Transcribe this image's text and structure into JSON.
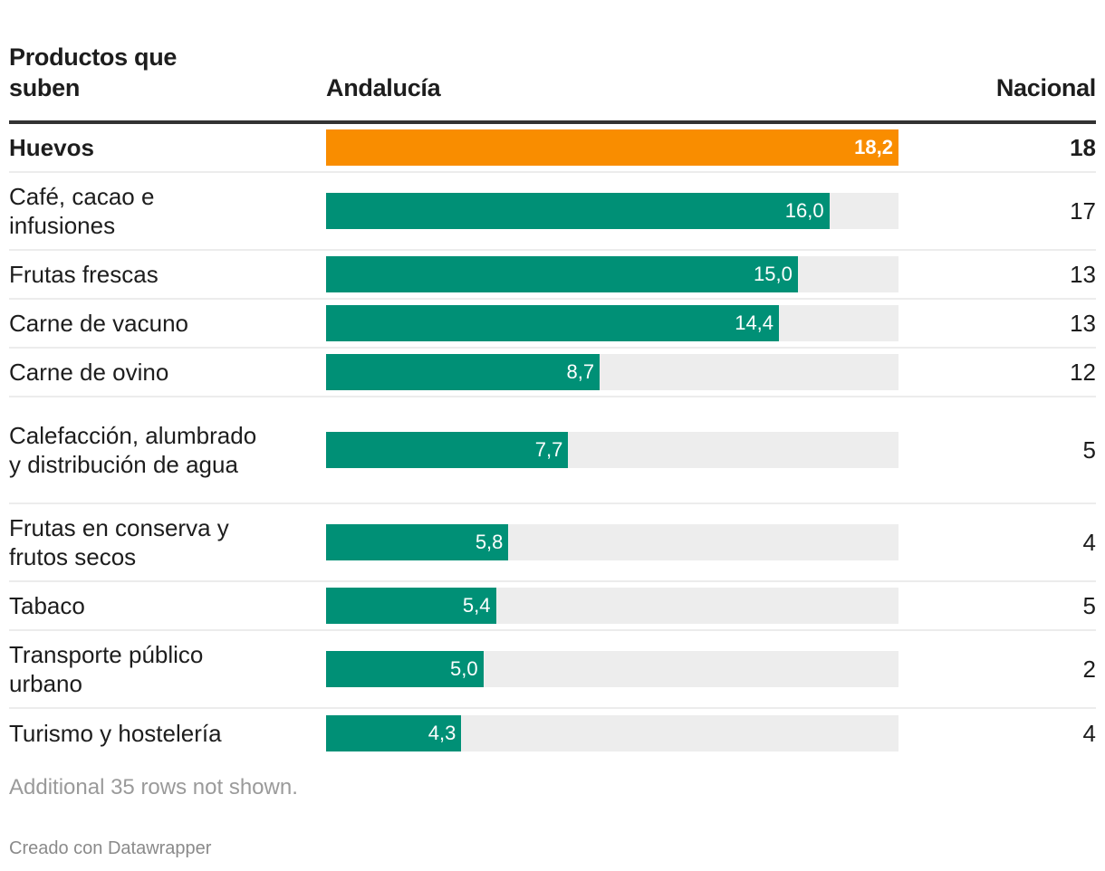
{
  "chart_data": {
    "type": "table",
    "columns": [
      "Productos que suben",
      "Andalucía",
      "Nacional"
    ],
    "bar_column": "Andalucía",
    "bar_max": 18.2,
    "colors": {
      "highlight": "#f98d00",
      "bar": "#009076",
      "track": "#ededed"
    },
    "rows": [
      {
        "product": "Huevos",
        "andalucia": 18.2,
        "andalucia_label": "18,2",
        "nacional": "18",
        "highlight": true
      },
      {
        "product": "Café, cacao e infusiones",
        "andalucia": 16.0,
        "andalucia_label": "16,0",
        "nacional": "17",
        "highlight": false
      },
      {
        "product": "Frutas frescas",
        "andalucia": 15.0,
        "andalucia_label": "15,0",
        "nacional": "13",
        "highlight": false
      },
      {
        "product": "Carne de vacuno",
        "andalucia": 14.4,
        "andalucia_label": "14,4",
        "nacional": "13",
        "highlight": false
      },
      {
        "product": "Carne de ovino",
        "andalucia": 8.7,
        "andalucia_label": "8,7",
        "nacional": "12",
        "highlight": false
      },
      {
        "product": "Calefacción, alumbrado y distribución de agua",
        "andalucia": 7.7,
        "andalucia_label": "7,7",
        "nacional": "5",
        "highlight": false
      },
      {
        "product": "Frutas en conserva y frutos secos",
        "andalucia": 5.8,
        "andalucia_label": "5,8",
        "nacional": "4",
        "highlight": false
      },
      {
        "product": "Tabaco",
        "andalucia": 5.4,
        "andalucia_label": "5,4",
        "nacional": "5",
        "highlight": false
      },
      {
        "product": "Transporte público urbano",
        "andalucia": 5.0,
        "andalucia_label": "5,0",
        "nacional": "2",
        "highlight": false
      },
      {
        "product": "Turismo y hostelería",
        "andalucia": 4.3,
        "andalucia_label": "4,3",
        "nacional": "4",
        "highlight": false
      }
    ]
  },
  "header": {
    "col1": "Productos que suben",
    "col2": "Andalucía",
    "col3": "Nacional"
  },
  "footer": {
    "note": "Additional 35 rows not shown.",
    "credit": "Creado con Datawrapper"
  }
}
